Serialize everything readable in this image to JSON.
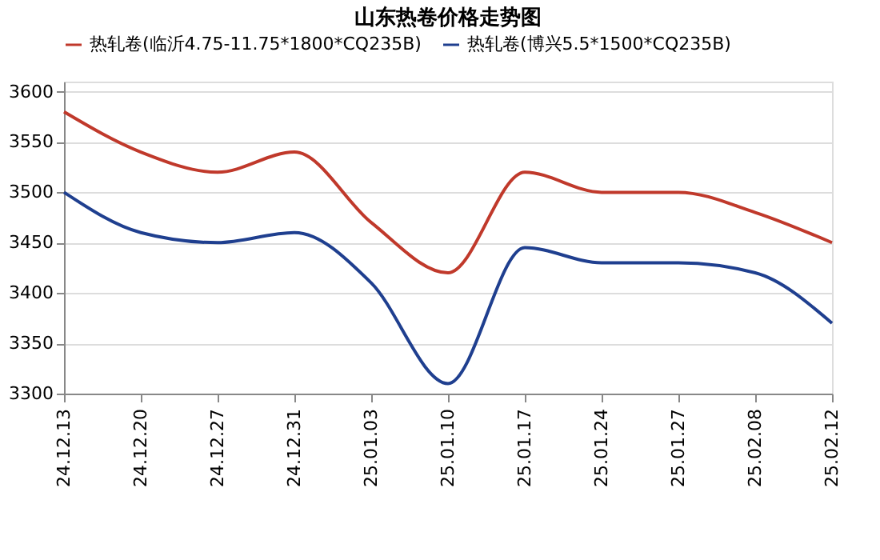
{
  "chart_data": {
    "type": "line",
    "title": "山东热卷价格走势图",
    "categories": [
      "24.12.13",
      "24.12.20",
      "24.12.27",
      "24.12.31",
      "25.01.03",
      "25.01.10",
      "25.01.17",
      "25.01.24",
      "25.01.27",
      "25.02.08",
      "25.02.12"
    ],
    "series": [
      {
        "name": "热轧卷(临沂4.75-11.75*1800*CQ235B)",
        "color": "#c0392b",
        "values": [
          3580,
          3540,
          3520,
          3540,
          3470,
          3420,
          3520,
          3500,
          3500,
          3480,
          3450
        ]
      },
      {
        "name": "热轧卷(博兴5.5*1500*CQ235B)",
        "color": "#1f3f8f",
        "values": [
          3500,
          3460,
          3450,
          3460,
          3410,
          3310,
          3445,
          3430,
          3430,
          3420,
          3370
        ]
      }
    ],
    "ylim": [
      3300,
      3610
    ],
    "yticks": [
      3300,
      3350,
      3400,
      3450,
      3500,
      3550,
      3600
    ],
    "grid": "y",
    "legend": "top",
    "marker": "none",
    "line_style": "solid"
  }
}
